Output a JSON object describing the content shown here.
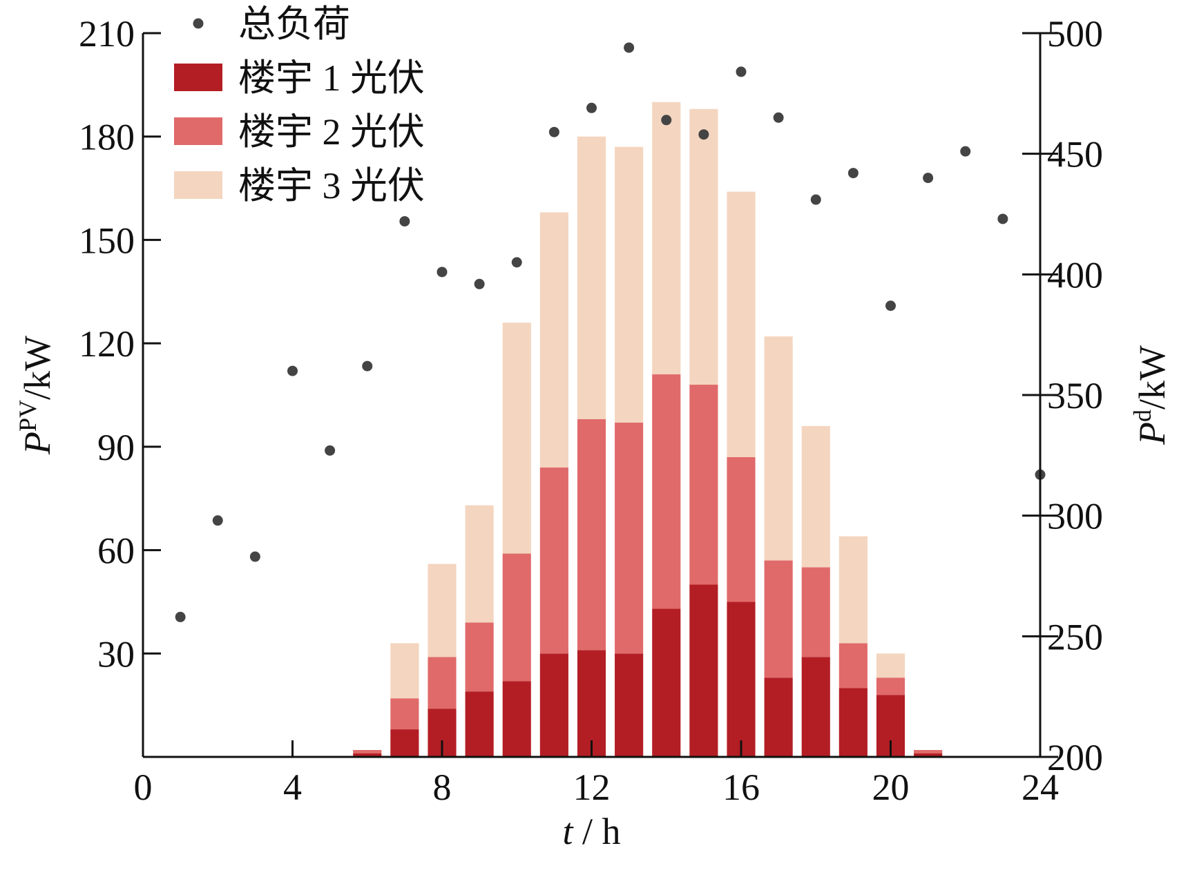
{
  "chart_data": {
    "type": "bar",
    "stacked": true,
    "x_ticks": [
      0,
      4,
      8,
      12,
      16,
      20,
      24
    ],
    "xlim": [
      0,
      24
    ],
    "xlabel": {
      "var": "t",
      "unit": "h",
      "sep": "/"
    },
    "y_left": {
      "label": {
        "var": "P",
        "sup": "PV",
        "unit": "/kW"
      },
      "ylim": [
        0,
        210
      ],
      "ticks": [
        30,
        60,
        90,
        120,
        150,
        180,
        210
      ]
    },
    "y_right": {
      "label": {
        "var": "P",
        "sup": "d",
        "unit": "/kW"
      },
      "ylim": [
        200,
        500
      ],
      "ticks": [
        200,
        250,
        300,
        350,
        400,
        450,
        500
      ]
    },
    "hours": [
      1,
      2,
      3,
      4,
      5,
      6,
      7,
      8,
      9,
      10,
      11,
      12,
      13,
      14,
      15,
      16,
      17,
      18,
      19,
      20,
      21,
      22,
      23,
      24
    ],
    "series": [
      {
        "name": "楼宇 1 光伏",
        "color": "#b31e24",
        "values": [
          0,
          0,
          0,
          0,
          0,
          1,
          8,
          14,
          19,
          22,
          30,
          31,
          30,
          43,
          50,
          45,
          23,
          29,
          20,
          18,
          1,
          0,
          0,
          0
        ]
      },
      {
        "name": "楼宇 2 光伏",
        "color": "#e06a6a",
        "values": [
          0,
          0,
          0,
          0,
          0,
          1,
          9,
          15,
          20,
          37,
          54,
          67,
          67,
          68,
          58,
          42,
          34,
          26,
          13,
          5,
          1,
          0,
          0,
          0
        ]
      },
      {
        "name": "楼宇 3 光伏",
        "color": "#f4d5bf",
        "values": [
          0,
          0,
          0,
          0,
          0,
          0,
          16,
          27,
          34,
          67,
          74,
          82,
          80,
          79,
          80,
          77,
          65,
          41,
          31,
          7,
          0,
          0,
          0,
          0
        ]
      }
    ],
    "scatter": {
      "name": "总负荷",
      "color": "#444444",
      "axis": "right",
      "values": [
        258,
        298,
        283,
        360,
        327,
        362,
        422,
        401,
        396,
        405,
        459,
        469,
        494,
        464,
        458,
        484,
        465,
        431,
        442,
        387,
        440,
        451,
        423,
        317
      ]
    },
    "legend_placement": "top-left",
    "grid": false
  }
}
